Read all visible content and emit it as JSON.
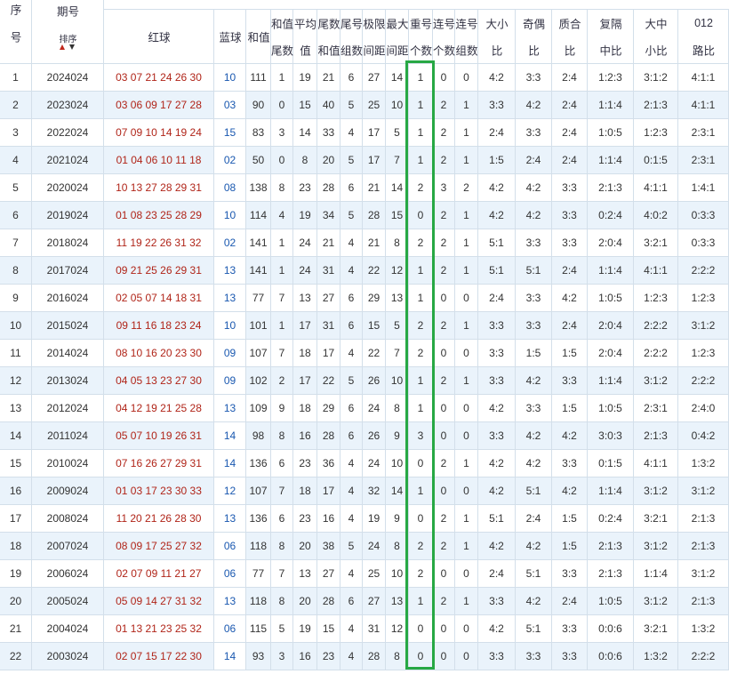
{
  "header": {
    "columns": [
      [
        "序",
        "号"
      ],
      [
        "期号"
      ],
      [
        "红球"
      ],
      [
        "蓝球"
      ],
      [
        "和值"
      ],
      [
        "和值",
        "尾数"
      ],
      [
        "平均",
        "值"
      ],
      [
        "尾数",
        "和值"
      ],
      [
        "尾号",
        "组数"
      ],
      [
        "极限",
        "间距"
      ],
      [
        "最大",
        "间距"
      ],
      [
        "重号",
        "个数"
      ],
      [
        "连号",
        "个数"
      ],
      [
        "连号",
        "组数"
      ],
      [
        "大小",
        "比"
      ],
      [
        "奇偶",
        "比"
      ],
      [
        "质合",
        "比"
      ],
      [
        "复隔",
        "中比"
      ],
      [
        "大中",
        "小比"
      ],
      [
        "012",
        "路比"
      ]
    ],
    "sort_label": "排序"
  },
  "rows": [
    [
      "1",
      "2024024",
      "03 07 21 24 26 30",
      "10",
      "111",
      "1",
      "19",
      "21",
      "6",
      "27",
      "14",
      "1",
      "0",
      "0",
      "4:2",
      "3:3",
      "2:4",
      "1:2:3",
      "3:1:2",
      "4:1:1"
    ],
    [
      "2",
      "2023024",
      "03 06 09 17 27 28",
      "03",
      "90",
      "0",
      "15",
      "40",
      "5",
      "25",
      "10",
      "1",
      "2",
      "1",
      "3:3",
      "4:2",
      "2:4",
      "1:1:4",
      "2:1:3",
      "4:1:1"
    ],
    [
      "3",
      "2022024",
      "07 09 10 14 19 24",
      "15",
      "83",
      "3",
      "14",
      "33",
      "4",
      "17",
      "5",
      "1",
      "2",
      "1",
      "2:4",
      "3:3",
      "2:4",
      "1:0:5",
      "1:2:3",
      "2:3:1"
    ],
    [
      "4",
      "2021024",
      "01 04 06 10 11 18",
      "02",
      "50",
      "0",
      "8",
      "20",
      "5",
      "17",
      "7",
      "1",
      "2",
      "1",
      "1:5",
      "2:4",
      "2:4",
      "1:1:4",
      "0:1:5",
      "2:3:1"
    ],
    [
      "5",
      "2020024",
      "10 13 27 28 29 31",
      "08",
      "138",
      "8",
      "23",
      "28",
      "6",
      "21",
      "14",
      "2",
      "3",
      "2",
      "4:2",
      "4:2",
      "3:3",
      "2:1:3",
      "4:1:1",
      "1:4:1"
    ],
    [
      "6",
      "2019024",
      "01 08 23 25 28 29",
      "10",
      "114",
      "4",
      "19",
      "34",
      "5",
      "28",
      "15",
      "0",
      "2",
      "1",
      "4:2",
      "4:2",
      "3:3",
      "0:2:4",
      "4:0:2",
      "0:3:3"
    ],
    [
      "7",
      "2018024",
      "11 19 22 26 31 32",
      "02",
      "141",
      "1",
      "24",
      "21",
      "4",
      "21",
      "8",
      "2",
      "2",
      "1",
      "5:1",
      "3:3",
      "3:3",
      "2:0:4",
      "3:2:1",
      "0:3:3"
    ],
    [
      "8",
      "2017024",
      "09 21 25 26 29 31",
      "13",
      "141",
      "1",
      "24",
      "31",
      "4",
      "22",
      "12",
      "1",
      "2",
      "1",
      "5:1",
      "5:1",
      "2:4",
      "1:1:4",
      "4:1:1",
      "2:2:2"
    ],
    [
      "9",
      "2016024",
      "02 05 07 14 18 31",
      "13",
      "77",
      "7",
      "13",
      "27",
      "6",
      "29",
      "13",
      "1",
      "0",
      "0",
      "2:4",
      "3:3",
      "4:2",
      "1:0:5",
      "1:2:3",
      "1:2:3"
    ],
    [
      "10",
      "2015024",
      "09 11 16 18 23 24",
      "10",
      "101",
      "1",
      "17",
      "31",
      "6",
      "15",
      "5",
      "2",
      "2",
      "1",
      "3:3",
      "3:3",
      "2:4",
      "2:0:4",
      "2:2:2",
      "3:1:2"
    ],
    [
      "11",
      "2014024",
      "08 10 16 20 23 30",
      "09",
      "107",
      "7",
      "18",
      "17",
      "4",
      "22",
      "7",
      "2",
      "0",
      "0",
      "3:3",
      "1:5",
      "1:5",
      "2:0:4",
      "2:2:2",
      "1:2:3"
    ],
    [
      "12",
      "2013024",
      "04 05 13 23 27 30",
      "09",
      "102",
      "2",
      "17",
      "22",
      "5",
      "26",
      "10",
      "1",
      "2",
      "1",
      "3:3",
      "4:2",
      "3:3",
      "1:1:4",
      "3:1:2",
      "2:2:2"
    ],
    [
      "13",
      "2012024",
      "04 12 19 21 25 28",
      "13",
      "109",
      "9",
      "18",
      "29",
      "6",
      "24",
      "8",
      "1",
      "0",
      "0",
      "4:2",
      "3:3",
      "1:5",
      "1:0:5",
      "2:3:1",
      "2:4:0"
    ],
    [
      "14",
      "2011024",
      "05 07 10 19 26 31",
      "14",
      "98",
      "8",
      "16",
      "28",
      "6",
      "26",
      "9",
      "3",
      "0",
      "0",
      "3:3",
      "4:2",
      "4:2",
      "3:0:3",
      "2:1:3",
      "0:4:2"
    ],
    [
      "15",
      "2010024",
      "07 16 26 27 29 31",
      "14",
      "136",
      "6",
      "23",
      "36",
      "4",
      "24",
      "10",
      "0",
      "2",
      "1",
      "4:2",
      "4:2",
      "3:3",
      "0:1:5",
      "4:1:1",
      "1:3:2"
    ],
    [
      "16",
      "2009024",
      "01 03 17 23 30 33",
      "12",
      "107",
      "7",
      "18",
      "17",
      "4",
      "32",
      "14",
      "1",
      "0",
      "0",
      "4:2",
      "5:1",
      "4:2",
      "1:1:4",
      "3:1:2",
      "3:1:2"
    ],
    [
      "17",
      "2008024",
      "11 20 21 26 28 30",
      "13",
      "136",
      "6",
      "23",
      "16",
      "4",
      "19",
      "9",
      "0",
      "2",
      "1",
      "5:1",
      "2:4",
      "1:5",
      "0:2:4",
      "3:2:1",
      "2:1:3"
    ],
    [
      "18",
      "2007024",
      "08 09 17 25 27 32",
      "06",
      "118",
      "8",
      "20",
      "38",
      "5",
      "24",
      "8",
      "2",
      "2",
      "1",
      "4:2",
      "4:2",
      "1:5",
      "2:1:3",
      "3:1:2",
      "2:1:3"
    ],
    [
      "19",
      "2006024",
      "02 07 09 11 21 27",
      "06",
      "77",
      "7",
      "13",
      "27",
      "4",
      "25",
      "10",
      "2",
      "0",
      "0",
      "2:4",
      "5:1",
      "3:3",
      "2:1:3",
      "1:1:4",
      "3:1:2"
    ],
    [
      "20",
      "2005024",
      "05 09 14 27 31 32",
      "13",
      "118",
      "8",
      "20",
      "28",
      "6",
      "27",
      "13",
      "1",
      "2",
      "1",
      "3:3",
      "4:2",
      "2:4",
      "1:0:5",
      "3:1:2",
      "2:1:3"
    ],
    [
      "21",
      "2004024",
      "01 13 21 23 25 32",
      "06",
      "115",
      "5",
      "19",
      "15",
      "4",
      "31",
      "12",
      "0",
      "0",
      "0",
      "4:2",
      "5:1",
      "3:3",
      "0:0:6",
      "3:2:1",
      "1:3:2"
    ],
    [
      "22",
      "2003024",
      "02 07 15 17 22 30",
      "14",
      "93",
      "3",
      "16",
      "23",
      "4",
      "28",
      "8",
      "0",
      "0",
      "0",
      "3:3",
      "3:3",
      "3:3",
      "0:0:6",
      "1:3:2",
      "2:2:2"
    ]
  ]
}
